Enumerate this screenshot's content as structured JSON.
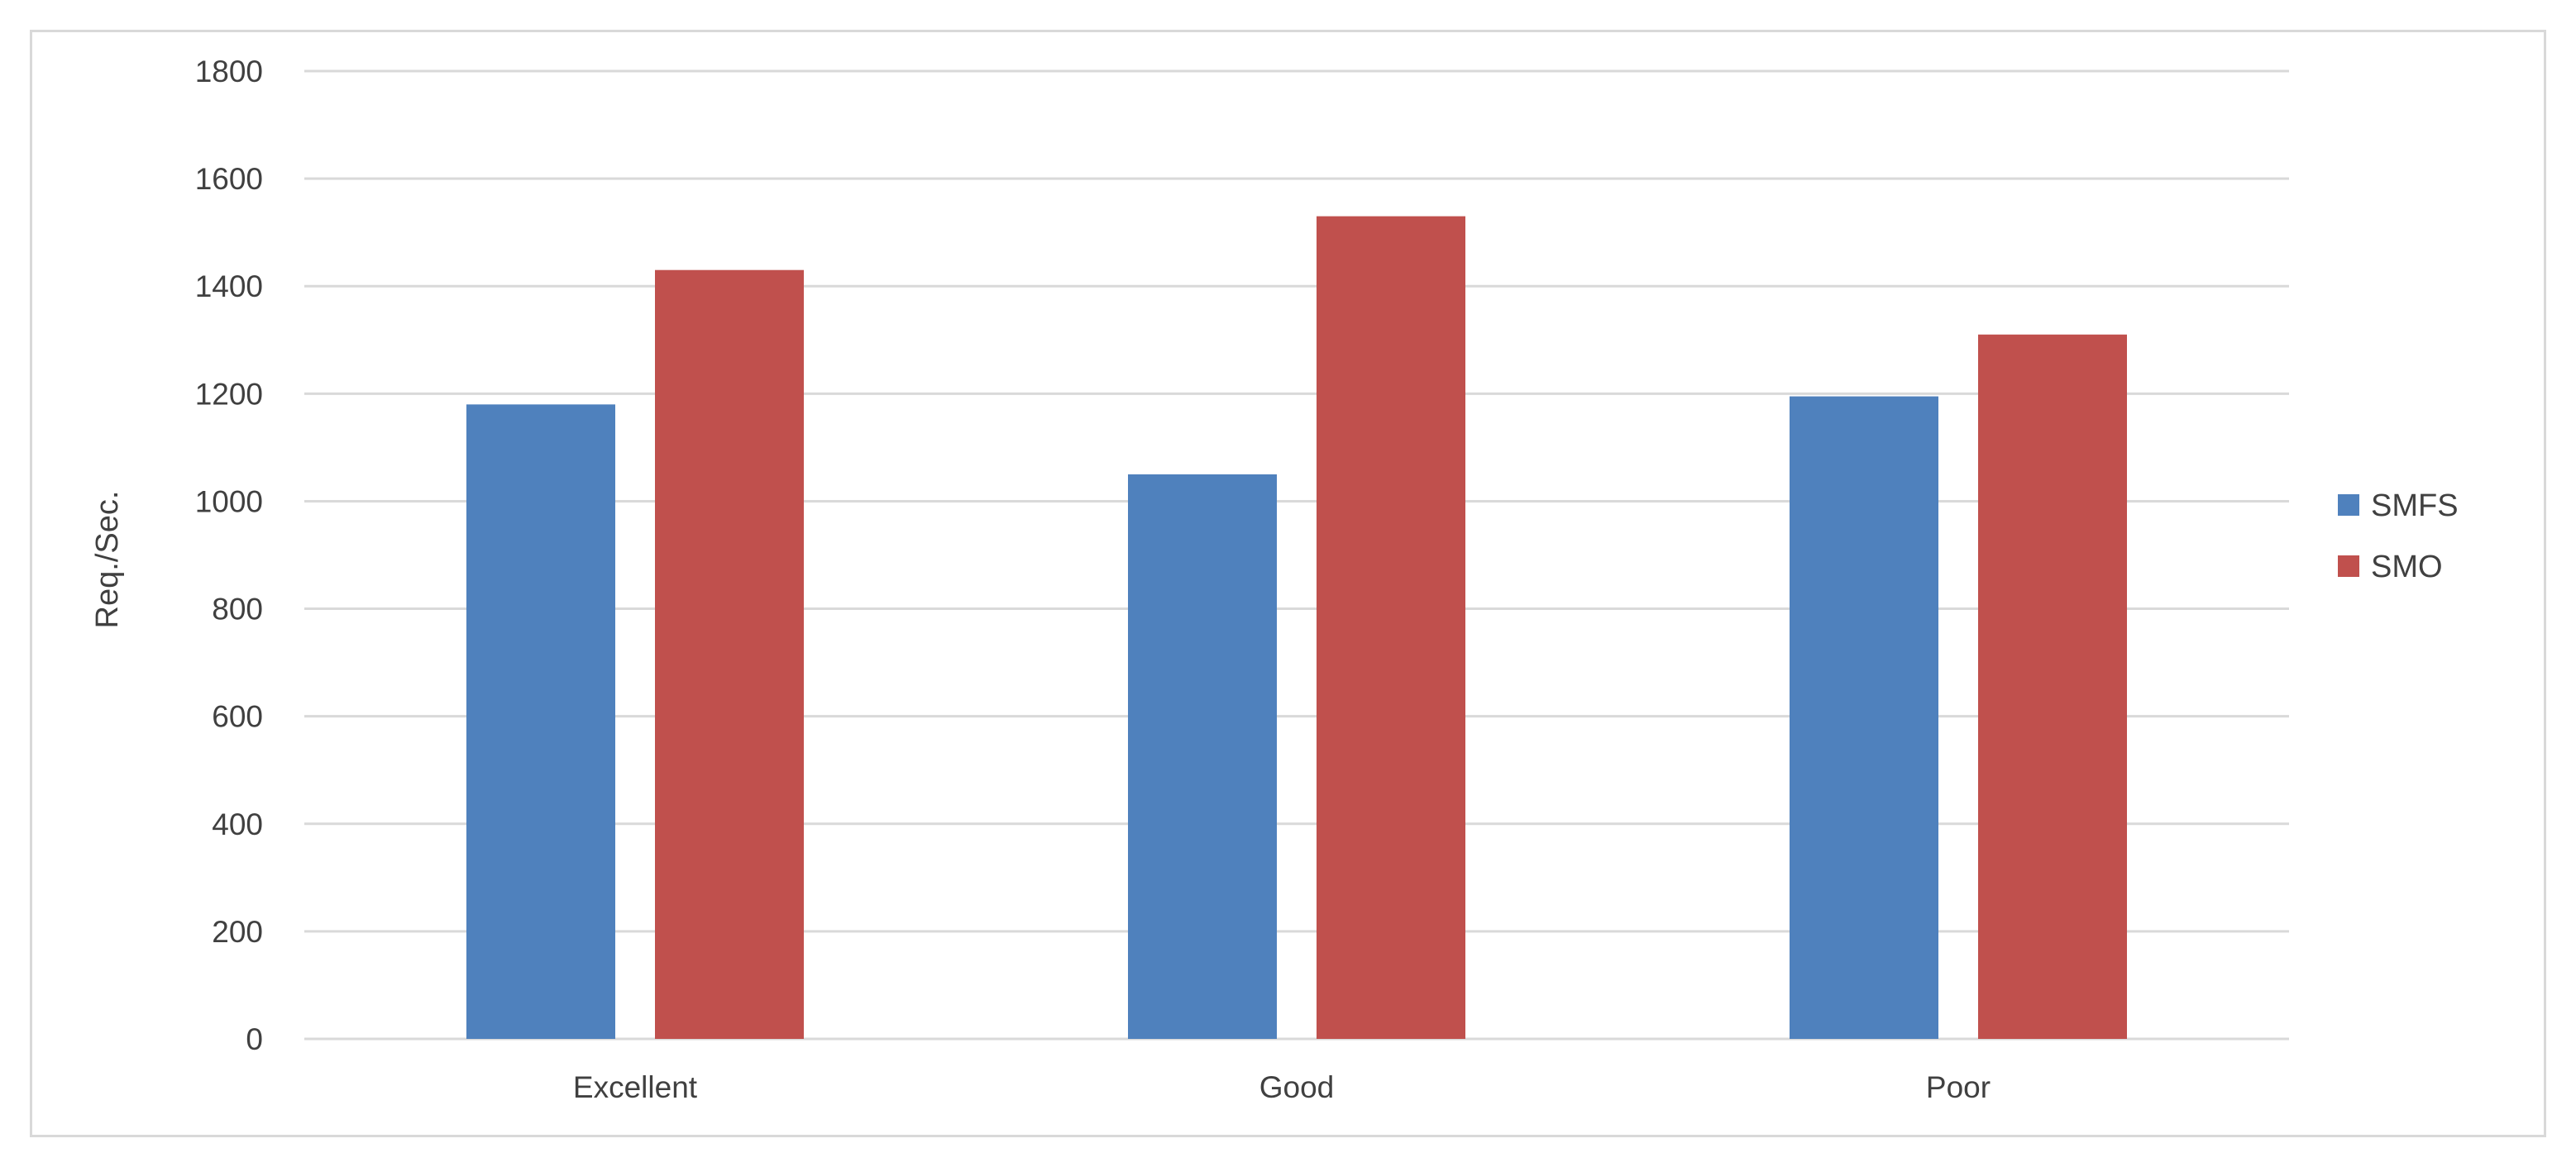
{
  "chart_data": {
    "type": "bar",
    "title": "",
    "xlabel": "",
    "ylabel": "Req./Sec.",
    "categories": [
      "Excellent",
      "Good",
      "Poor"
    ],
    "series": [
      {
        "name": "SMFS",
        "values": [
          1180,
          1050,
          1195
        ],
        "color": "#4f81bd"
      },
      {
        "name": "SMO",
        "values": [
          1430,
          1530,
          1310
        ],
        "color": "#c0504d"
      }
    ],
    "ylim": [
      0,
      1800
    ],
    "yticks": [
      0,
      200,
      400,
      600,
      800,
      1000,
      1200,
      1400,
      1600,
      1800
    ],
    "grid": true,
    "legend_position": "right",
    "colors": {
      "grid": "#d9d9d9",
      "text": "#404040",
      "frame": "#d9d9d9"
    }
  }
}
